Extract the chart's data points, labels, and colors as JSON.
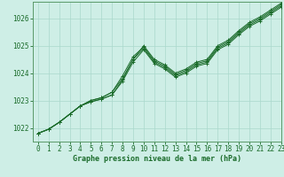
{
  "title": "Graphe pression niveau de la mer (hPa)",
  "bg_color": "#ceeee6",
  "grid_color": "#aad8cc",
  "line_color": "#1a6b2a",
  "spine_color": "#5a9a6a",
  "xlim": [
    -0.5,
    23
  ],
  "ylim": [
    1021.5,
    1026.6
  ],
  "yticks": [
    1022,
    1023,
    1024,
    1025,
    1026
  ],
  "xticks": [
    0,
    1,
    2,
    3,
    4,
    5,
    6,
    7,
    8,
    9,
    10,
    11,
    12,
    13,
    14,
    15,
    16,
    17,
    18,
    19,
    20,
    21,
    22,
    23
  ],
  "series": [
    [
      1021.8,
      1021.95,
      1022.2,
      1022.5,
      1022.8,
      1023.0,
      1023.1,
      1023.3,
      1023.8,
      1024.5,
      1025.0,
      1024.5,
      1024.3,
      1024.0,
      1024.15,
      1024.4,
      1024.5,
      1025.0,
      1025.2,
      1025.55,
      1025.85,
      1026.05,
      1026.3,
      1026.55
    ],
    [
      1021.8,
      1021.95,
      1022.2,
      1022.5,
      1022.8,
      1023.0,
      1023.1,
      1023.3,
      1023.9,
      1024.6,
      1024.95,
      1024.45,
      1024.25,
      1023.95,
      1024.1,
      1024.35,
      1024.45,
      1024.95,
      1025.15,
      1025.5,
      1025.8,
      1026.0,
      1026.25,
      1026.5
    ],
    [
      1021.8,
      1021.95,
      1022.2,
      1022.5,
      1022.8,
      1022.95,
      1023.05,
      1023.2,
      1023.75,
      1024.5,
      1024.9,
      1024.4,
      1024.2,
      1023.9,
      1024.05,
      1024.3,
      1024.4,
      1024.9,
      1025.1,
      1025.45,
      1025.75,
      1025.95,
      1026.2,
      1026.45
    ],
    [
      1021.8,
      1021.95,
      1022.2,
      1022.5,
      1022.8,
      1022.95,
      1023.05,
      1023.2,
      1023.7,
      1024.4,
      1024.85,
      1024.35,
      1024.15,
      1023.85,
      1024.0,
      1024.25,
      1024.35,
      1024.85,
      1025.05,
      1025.4,
      1025.7,
      1025.9,
      1026.15,
      1026.4
    ]
  ]
}
